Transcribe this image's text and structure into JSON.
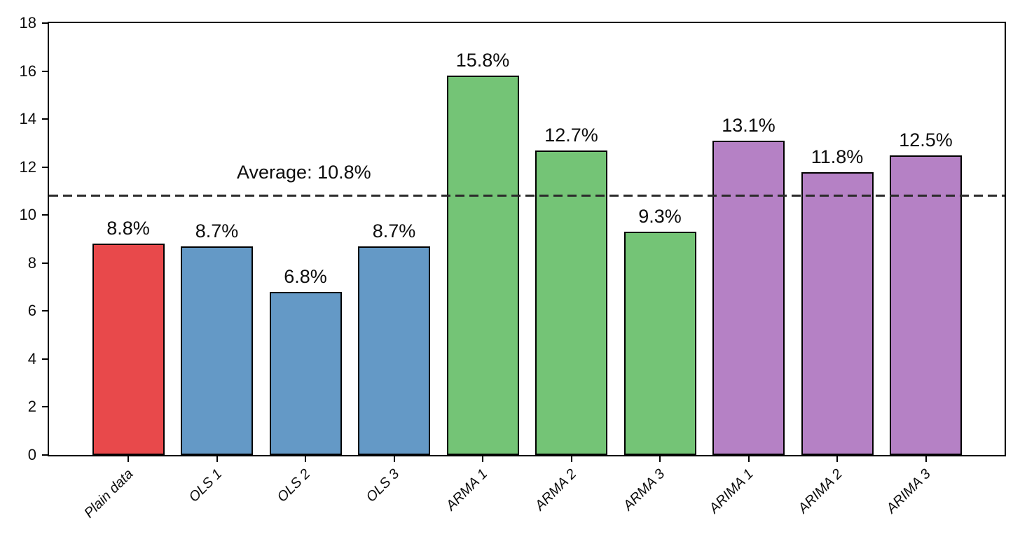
{
  "chart_data": {
    "type": "bar",
    "title": "",
    "xlabel": "",
    "ylabel": "",
    "categories": [
      "Plain data",
      "OLS 1",
      "OLS 2",
      "OLS 3",
      "ARMA 1",
      "ARMA 2",
      "ARMA 3",
      "ARIMA 1",
      "ARIMA 2",
      "ARIMA 3"
    ],
    "values": [
      8.8,
      8.7,
      6.8,
      8.7,
      15.8,
      12.7,
      9.3,
      13.1,
      11.8,
      12.5
    ],
    "value_labels": [
      "8.8%",
      "8.7%",
      "6.8%",
      "8.7%",
      "15.8%",
      "12.7%",
      "9.3%",
      "13.1%",
      "11.8%",
      "12.5%"
    ],
    "bar_colors": [
      "#E8494B",
      "#6499C6",
      "#6499C6",
      "#6499C6",
      "#74C476",
      "#74C476",
      "#74C476",
      "#B581C5",
      "#B581C5",
      "#B581C5"
    ],
    "bar_edge_color": "#000000",
    "ylim": [
      0,
      18
    ],
    "yticks": [
      0,
      2,
      4,
      6,
      8,
      10,
      12,
      14,
      16,
      18
    ],
    "ytick_labels": [
      "0",
      "2",
      "4",
      "6",
      "8",
      "10",
      "12",
      "14",
      "16",
      "18"
    ],
    "grid": false,
    "legend": "none",
    "average_line": {
      "value": 10.8,
      "label": "Average: 10.8%",
      "style": "dashed",
      "color": "#2b2b2b"
    }
  }
}
